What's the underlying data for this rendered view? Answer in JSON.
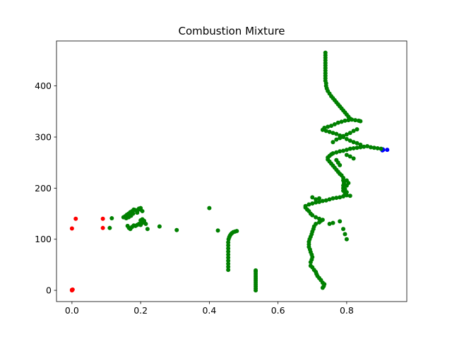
{
  "chart_data": {
    "type": "scatter",
    "title": "Combustion Mixture",
    "xlabel": "",
    "ylabel": "",
    "xlim": [
      -0.045,
      0.975
    ],
    "ylim": [
      -22,
      488
    ],
    "xticks": [
      0.0,
      0.2,
      0.4,
      0.6,
      0.8
    ],
    "xtick_labels": [
      "0.0",
      "0.2",
      "0.4",
      "0.6",
      "0.8"
    ],
    "yticks": [
      0,
      100,
      200,
      300,
      400
    ],
    "ytick_labels": [
      "0",
      "100",
      "200",
      "300",
      "400"
    ],
    "grid": false,
    "legend": "none",
    "series": [
      {
        "color": "#ff0000",
        "points": [
          [
            0.0,
            0.0
          ],
          [
            0.0,
            1.0
          ],
          [
            0.002,
            1.5
          ],
          [
            0.0,
            121
          ],
          [
            0.011,
            140
          ],
          [
            0.09,
            140
          ],
          [
            0.09,
            122
          ]
        ]
      },
      {
        "color": "#0000ff",
        "points": [
          [
            0.904,
            274
          ],
          [
            0.905,
            276
          ],
          [
            0.906,
            275
          ],
          [
            0.918,
            275
          ]
        ]
      },
      {
        "color": "#008000",
        "points": [
          [
            0.11,
            122
          ],
          [
            0.116,
            141
          ],
          [
            0.15,
            143
          ],
          [
            0.155,
            145
          ],
          [
            0.16,
            148
          ],
          [
            0.165,
            150
          ],
          [
            0.17,
            153
          ],
          [
            0.175,
            155
          ],
          [
            0.18,
            158
          ],
          [
            0.185,
            157
          ],
          [
            0.19,
            155
          ],
          [
            0.195,
            160
          ],
          [
            0.2,
            158
          ],
          [
            0.205,
            155
          ],
          [
            0.2,
            161
          ],
          [
            0.19,
            152
          ],
          [
            0.178,
            150
          ],
          [
            0.172,
            146
          ],
          [
            0.165,
            143
          ],
          [
            0.158,
            141
          ],
          [
            0.162,
            126
          ],
          [
            0.166,
            122
          ],
          [
            0.17,
            120
          ],
          [
            0.175,
            124
          ],
          [
            0.18,
            127
          ],
          [
            0.185,
            126
          ],
          [
            0.19,
            128
          ],
          [
            0.195,
            130
          ],
          [
            0.2,
            128
          ],
          [
            0.205,
            132
          ],
          [
            0.21,
            134
          ],
          [
            0.215,
            130
          ],
          [
            0.2,
            137
          ],
          [
            0.205,
            139
          ],
          [
            0.21,
            136
          ],
          [
            0.22,
            120
          ],
          [
            0.255,
            125
          ],
          [
            0.305,
            118
          ],
          [
            0.4,
            161
          ],
          [
            0.425,
            117
          ],
          [
            0.455,
            40
          ],
          [
            0.455,
            46
          ],
          [
            0.455,
            52
          ],
          [
            0.455,
            58
          ],
          [
            0.455,
            64
          ],
          [
            0.455,
            70
          ],
          [
            0.455,
            76
          ],
          [
            0.455,
            82
          ],
          [
            0.455,
            88
          ],
          [
            0.455,
            94
          ],
          [
            0.456,
            100
          ],
          [
            0.458,
            104
          ],
          [
            0.46,
            107
          ],
          [
            0.463,
            110
          ],
          [
            0.466,
            112
          ],
          [
            0.47,
            114
          ],
          [
            0.475,
            115
          ],
          [
            0.48,
            116
          ],
          [
            0.535,
            0
          ],
          [
            0.535,
            4
          ],
          [
            0.535,
            8
          ],
          [
            0.535,
            12
          ],
          [
            0.535,
            16
          ],
          [
            0.535,
            20
          ],
          [
            0.535,
            24
          ],
          [
            0.535,
            28
          ],
          [
            0.535,
            32
          ],
          [
            0.535,
            36
          ],
          [
            0.535,
            39
          ],
          [
            0.73,
            5
          ],
          [
            0.733,
            8
          ],
          [
            0.735,
            12
          ],
          [
            0.73,
            15
          ],
          [
            0.725,
            20
          ],
          [
            0.72,
            24
          ],
          [
            0.715,
            28
          ],
          [
            0.712,
            32
          ],
          [
            0.71,
            36
          ],
          [
            0.705,
            40
          ],
          [
            0.7,
            45
          ],
          [
            0.695,
            48
          ],
          [
            0.695,
            55
          ],
          [
            0.698,
            60
          ],
          [
            0.7,
            65
          ],
          [
            0.698,
            70
          ],
          [
            0.695,
            75
          ],
          [
            0.693,
            80
          ],
          [
            0.69,
            85
          ],
          [
            0.69,
            90
          ],
          [
            0.69,
            95
          ],
          [
            0.692,
            100
          ],
          [
            0.695,
            105
          ],
          [
            0.698,
            110
          ],
          [
            0.7,
            115
          ],
          [
            0.703,
            120
          ],
          [
            0.705,
            125
          ],
          [
            0.71,
            130
          ],
          [
            0.72,
            133
          ],
          [
            0.725,
            136
          ],
          [
            0.73,
            138
          ],
          [
            0.72,
            140
          ],
          [
            0.71,
            143
          ],
          [
            0.7,
            147
          ],
          [
            0.695,
            150
          ],
          [
            0.69,
            155
          ],
          [
            0.685,
            158
          ],
          [
            0.68,
            162
          ],
          [
            0.68,
            165
          ],
          [
            0.69,
            168
          ],
          [
            0.7,
            170
          ],
          [
            0.71,
            172
          ],
          [
            0.72,
            173
          ],
          [
            0.73,
            175
          ],
          [
            0.74,
            176
          ],
          [
            0.75,
            178
          ],
          [
            0.76,
            180
          ],
          [
            0.77,
            181
          ],
          [
            0.78,
            182
          ],
          [
            0.79,
            184
          ],
          [
            0.8,
            186
          ],
          [
            0.81,
            185
          ],
          [
            0.795,
            190
          ],
          [
            0.79,
            195
          ],
          [
            0.79,
            200
          ],
          [
            0.79,
            205
          ],
          [
            0.792,
            210
          ],
          [
            0.79,
            215
          ],
          [
            0.79,
            220
          ],
          [
            0.785,
            225
          ],
          [
            0.78,
            228
          ],
          [
            0.775,
            232
          ],
          [
            0.77,
            236
          ],
          [
            0.765,
            240
          ],
          [
            0.76,
            244
          ],
          [
            0.755,
            248
          ],
          [
            0.75,
            252
          ],
          [
            0.745,
            256
          ],
          [
            0.745,
            260
          ],
          [
            0.75,
            263
          ],
          [
            0.755,
            266
          ],
          [
            0.76,
            268
          ],
          [
            0.77,
            270
          ],
          [
            0.78,
            272
          ],
          [
            0.79,
            273
          ],
          [
            0.8,
            275
          ],
          [
            0.81,
            277
          ],
          [
            0.82,
            278
          ],
          [
            0.83,
            279
          ],
          [
            0.84,
            280
          ],
          [
            0.85,
            281
          ],
          [
            0.86,
            282
          ],
          [
            0.87,
            280
          ],
          [
            0.88,
            279
          ],
          [
            0.89,
            278
          ],
          [
            0.9,
            277
          ],
          [
            0.84,
            285
          ],
          [
            0.83,
            288
          ],
          [
            0.82,
            290
          ],
          [
            0.81,
            293
          ],
          [
            0.8,
            296
          ],
          [
            0.79,
            300
          ],
          [
            0.78,
            303
          ],
          [
            0.77,
            306
          ],
          [
            0.76,
            308
          ],
          [
            0.75,
            310
          ],
          [
            0.74,
            312
          ],
          [
            0.73,
            314
          ],
          [
            0.735,
            318
          ],
          [
            0.745,
            320
          ],
          [
            0.755,
            322
          ],
          [
            0.765,
            325
          ],
          [
            0.775,
            328
          ],
          [
            0.785,
            330
          ],
          [
            0.795,
            332
          ],
          [
            0.805,
            333
          ],
          [
            0.815,
            334
          ],
          [
            0.825,
            333
          ],
          [
            0.835,
            332
          ],
          [
            0.84,
            331
          ],
          [
            0.81,
            336
          ],
          [
            0.805,
            340
          ],
          [
            0.8,
            344
          ],
          [
            0.795,
            348
          ],
          [
            0.79,
            352
          ],
          [
            0.785,
            356
          ],
          [
            0.78,
            360
          ],
          [
            0.775,
            364
          ],
          [
            0.77,
            368
          ],
          [
            0.765,
            372
          ],
          [
            0.76,
            376
          ],
          [
            0.755,
            380
          ],
          [
            0.75,
            385
          ],
          [
            0.745,
            390
          ],
          [
            0.742,
            395
          ],
          [
            0.74,
            400
          ],
          [
            0.74,
            405
          ],
          [
            0.738,
            410
          ],
          [
            0.738,
            415
          ],
          [
            0.738,
            420
          ],
          [
            0.738,
            425
          ],
          [
            0.738,
            430
          ],
          [
            0.738,
            435
          ],
          [
            0.738,
            440
          ],
          [
            0.738,
            445
          ],
          [
            0.738,
            450
          ],
          [
            0.738,
            455
          ],
          [
            0.738,
            460
          ],
          [
            0.738,
            465
          ],
          [
            0.75,
            130
          ],
          [
            0.76,
            132
          ],
          [
            0.78,
            135
          ],
          [
            0.79,
            120
          ],
          [
            0.795,
            110
          ],
          [
            0.8,
            100
          ],
          [
            0.72,
            180
          ],
          [
            0.71,
            178
          ],
          [
            0.7,
            182
          ],
          [
            0.76,
            290
          ],
          [
            0.77,
            295
          ],
          [
            0.78,
            298
          ],
          [
            0.79,
            302
          ],
          [
            0.8,
            305
          ],
          [
            0.81,
            308
          ],
          [
            0.82,
            312
          ],
          [
            0.83,
            315
          ],
          [
            0.8,
            265
          ],
          [
            0.81,
            262
          ],
          [
            0.82,
            258
          ],
          [
            0.77,
            255
          ],
          [
            0.775,
            250
          ],
          [
            0.78,
            245
          ],
          [
            0.8,
            215
          ],
          [
            0.805,
            210
          ],
          [
            0.8,
            205
          ],
          [
            0.795,
            198
          ],
          [
            0.8,
            192
          ],
          [
            0.795,
            187
          ]
        ]
      }
    ]
  }
}
